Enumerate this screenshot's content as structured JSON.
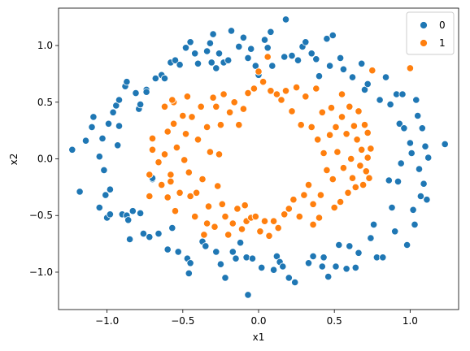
{
  "chart_data": {
    "type": "scatter",
    "xlabel": "x1",
    "ylabel": "x2",
    "xlim": [
      -1.32,
      1.32
    ],
    "ylim": [
      -1.33,
      1.33
    ],
    "xticks": [
      -1.0,
      -0.5,
      0.0,
      0.5,
      1.0
    ],
    "xtick_labels": [
      "−1.0",
      "−0.5",
      "0.0",
      "0.5",
      "1.0"
    ],
    "yticks": [
      -1.0,
      -0.5,
      0.0,
      0.5,
      1.0
    ],
    "ytick_labels": [
      "−1.0",
      "−0.5",
      "0.0",
      "0.5",
      "1.0"
    ],
    "grid": false,
    "legend_position": "top-right",
    "series": [
      {
        "name": "0",
        "color": "#1f77b4",
        "points": [
          [
            -1.23,
            0.08
          ],
          [
            -1.18,
            -0.29
          ],
          [
            -1.14,
            0.16
          ],
          [
            -1.09,
            0.37
          ],
          [
            -1.1,
            0.28
          ],
          [
            -1.05,
            0.02
          ],
          [
            -1.03,
            0.18
          ],
          [
            -1.02,
            -0.1
          ],
          [
            -1.01,
            -0.32
          ],
          [
            -1.0,
            -0.52
          ],
          [
            -0.98,
            -0.49
          ],
          [
            -0.99,
            0.31
          ],
          [
            -0.96,
            0.41
          ],
          [
            -0.94,
            0.47
          ],
          [
            -0.92,
            0.29
          ],
          [
            -0.92,
            0.52
          ],
          [
            -0.9,
            -0.49
          ],
          [
            -0.88,
            0.64
          ],
          [
            -0.87,
            0.68
          ],
          [
            -0.87,
            -0.5
          ],
          [
            -0.86,
            -0.54
          ],
          [
            -0.85,
            -0.71
          ],
          [
            -0.83,
            -0.46
          ],
          [
            -0.81,
            0.58
          ],
          [
            -0.79,
            0.44
          ],
          [
            -0.78,
            0.48
          ],
          [
            -0.78,
            -0.48
          ],
          [
            -0.76,
            -0.66
          ],
          [
            -0.74,
            0.61
          ],
          [
            -0.74,
            0.59
          ],
          [
            -0.72,
            -0.69
          ],
          [
            -0.7,
            -0.18
          ],
          [
            -0.7,
            -0.17
          ],
          [
            -0.68,
            0.71
          ],
          [
            -0.66,
            -0.66
          ],
          [
            -0.64,
            0.74
          ],
          [
            -0.62,
            0.71
          ],
          [
            -0.6,
            -0.8
          ],
          [
            -0.58,
            0.85
          ],
          [
            -0.57,
            -0.61
          ],
          [
            -0.55,
            0.87
          ],
          [
            -0.53,
            -0.82
          ],
          [
            -0.52,
            0.83
          ],
          [
            -0.48,
            0.98
          ],
          [
            -0.47,
            -0.88
          ],
          [
            -0.45,
            -0.92
          ],
          [
            -0.46,
            -1.01
          ],
          [
            -0.45,
            1.03
          ],
          [
            -0.42,
            0.93
          ],
          [
            -0.4,
            0.84
          ],
          [
            -0.37,
            -0.73
          ],
          [
            -0.35,
            -0.77
          ],
          [
            -0.34,
            0.95
          ],
          [
            -0.32,
            1.02
          ],
          [
            -0.31,
            0.85
          ],
          [
            -0.3,
            1.1
          ],
          [
            -0.28,
            -0.82
          ],
          [
            -0.28,
            0.8
          ],
          [
            -0.26,
            0.93
          ],
          [
            -0.25,
            -0.93
          ],
          [
            -0.23,
            0.85
          ],
          [
            -0.22,
            -1.05
          ],
          [
            -0.2,
            0.87
          ],
          [
            -0.18,
            1.13
          ],
          [
            -0.17,
            -0.82
          ],
          [
            -0.15,
            -0.88
          ],
          [
            -0.13,
            0.99
          ],
          [
            -0.12,
            -0.74
          ],
          [
            -0.1,
            1.07
          ],
          [
            -0.08,
            -0.87
          ],
          [
            -0.07,
            0.89
          ],
          [
            -0.07,
            -1.2
          ],
          [
            -0.05,
            0.97
          ],
          [
            -0.04,
            -0.88
          ],
          [
            -0.02,
            0.82
          ],
          [
            0.0,
            0.74
          ],
          [
            0.02,
            -0.96
          ],
          [
            0.04,
            1.05
          ],
          [
            0.06,
            0.98
          ],
          [
            0.08,
            1.12
          ],
          [
            0.09,
            0.82
          ],
          [
            0.1,
            -0.98
          ],
          [
            0.12,
            -0.86
          ],
          [
            0.14,
            -0.91
          ],
          [
            0.16,
            -0.95
          ],
          [
            0.17,
            0.9
          ],
          [
            0.18,
            1.23
          ],
          [
            0.2,
            -1.05
          ],
          [
            0.22,
            0.91
          ],
          [
            0.24,
            -1.09
          ],
          [
            0.26,
            0.87
          ],
          [
            0.29,
            0.99
          ],
          [
            0.31,
            1.03
          ],
          [
            0.33,
            -0.92
          ],
          [
            0.35,
            0.93
          ],
          [
            0.36,
            -0.86
          ],
          [
            0.38,
            0.88
          ],
          [
            0.4,
            0.73
          ],
          [
            0.42,
            -0.95
          ],
          [
            0.43,
            -0.87
          ],
          [
            0.45,
            1.06
          ],
          [
            0.46,
            -1.04
          ],
          [
            0.47,
            0.82
          ],
          [
            0.49,
            1.09
          ],
          [
            0.51,
            -0.95
          ],
          [
            0.53,
            -0.76
          ],
          [
            0.54,
            0.89
          ],
          [
            0.56,
            0.79
          ],
          [
            0.58,
            -0.97
          ],
          [
            0.6,
            -0.77
          ],
          [
            0.62,
            0.72
          ],
          [
            0.64,
            -0.96
          ],
          [
            0.66,
            -0.83
          ],
          [
            0.68,
            0.84
          ],
          [
            0.7,
            0.61
          ],
          [
            0.72,
            0.66
          ],
          [
            0.74,
            -0.7
          ],
          [
            0.76,
            -0.58
          ],
          [
            0.78,
            -0.87
          ],
          [
            0.8,
            0.52
          ],
          [
            0.82,
            -0.87
          ],
          [
            0.84,
            0.72
          ],
          [
            0.86,
            -0.19
          ],
          [
            0.87,
            0.48
          ],
          [
            0.88,
            -0.43
          ],
          [
            0.9,
            -0.64
          ],
          [
            0.91,
            0.57
          ],
          [
            0.92,
            -0.2
          ],
          [
            0.93,
            0.31
          ],
          [
            0.94,
            -0.04
          ],
          [
            0.95,
            0.57
          ],
          [
            0.96,
            0.27
          ],
          [
            0.98,
            -0.76
          ],
          [
            1.0,
            0.14
          ],
          [
            1.01,
            0.05
          ],
          [
            1.02,
            -0.45
          ],
          [
            1.03,
            -0.58
          ],
          [
            1.04,
            0.52
          ],
          [
            1.05,
            0.38
          ],
          [
            1.06,
            -0.09
          ],
          [
            1.07,
            -0.33
          ],
          [
            1.08,
            0.27
          ],
          [
            1.09,
            -0.22
          ],
          [
            1.1,
            0.11
          ],
          [
            1.11,
            -0.36
          ],
          [
            1.12,
            0.01
          ],
          [
            1.23,
            0.13
          ],
          [
            -1.05,
            -0.43
          ],
          [
            -0.98,
            -0.27
          ],
          [
            -0.93,
            0.12
          ]
        ]
      },
      {
        "name": "1",
        "color": "#ff7f0e",
        "points": [
          [
            -0.72,
            -0.14
          ],
          [
            -0.72,
            -0.33
          ],
          [
            -0.7,
            0.08
          ],
          [
            -0.7,
            0.18
          ],
          [
            -0.66,
            -0.03
          ],
          [
            -0.64,
            -0.23
          ],
          [
            -0.62,
            0.04
          ],
          [
            -0.6,
            0.24
          ],
          [
            -0.6,
            -0.34
          ],
          [
            -0.58,
            -0.14
          ],
          [
            -0.58,
            -0.2
          ],
          [
            -0.56,
            0.31
          ],
          [
            -0.56,
            0.5
          ],
          [
            -0.55,
            -0.46
          ],
          [
            -0.54,
            0.1
          ],
          [
            -0.52,
            -0.3
          ],
          [
            -0.5,
            0.38
          ],
          [
            -0.49,
            -0.01
          ],
          [
            -0.48,
            0.22
          ],
          [
            -0.47,
            0.55
          ],
          [
            -0.46,
            -0.12
          ],
          [
            -0.45,
            -0.33
          ],
          [
            -0.44,
            0.37
          ],
          [
            -0.42,
            -0.51
          ],
          [
            -0.41,
            -0.3
          ],
          [
            -0.4,
            0.17
          ],
          [
            -0.38,
            0.46
          ],
          [
            -0.37,
            -0.18
          ],
          [
            -0.36,
            -0.67
          ],
          [
            -0.34,
            0.28
          ],
          [
            -0.33,
            -0.42
          ],
          [
            -0.32,
            0.06
          ],
          [
            -0.3,
            0.54
          ],
          [
            -0.29,
            -0.6
          ],
          [
            -0.28,
            0.46
          ],
          [
            -0.27,
            -0.24
          ],
          [
            -0.25,
            0.3
          ],
          [
            -0.24,
            -0.4
          ],
          [
            -0.23,
            0.57
          ],
          [
            -0.22,
            -0.51
          ],
          [
            -0.2,
            -0.67
          ],
          [
            -0.19,
            0.41
          ],
          [
            -0.17,
            -0.57
          ],
          [
            -0.16,
            0.5
          ],
          [
            -0.14,
            -0.44
          ],
          [
            -0.13,
            0.3
          ],
          [
            -0.11,
            -0.62
          ],
          [
            -0.1,
            0.44
          ],
          [
            -0.08,
            -0.55
          ],
          [
            -0.07,
            0.58
          ],
          [
            -0.05,
            -0.52
          ],
          [
            -0.03,
            0.62
          ],
          [
            -0.02,
            -0.51
          ],
          [
            0.0,
            0.77
          ],
          [
            0.01,
            -0.64
          ],
          [
            0.03,
            0.68
          ],
          [
            0.04,
            -0.55
          ],
          [
            0.06,
            0.9
          ],
          [
            0.08,
            0.6
          ],
          [
            0.1,
            -0.55
          ],
          [
            0.12,
            0.57
          ],
          [
            0.13,
            -0.61
          ],
          [
            0.15,
            0.52
          ],
          [
            0.17,
            -0.49
          ],
          [
            0.18,
            0.6
          ],
          [
            0.2,
            -0.44
          ],
          [
            0.22,
            0.42
          ],
          [
            0.23,
            -0.36
          ],
          [
            0.25,
            0.63
          ],
          [
            0.27,
            -0.51
          ],
          [
            0.28,
            0.3
          ],
          [
            0.3,
            -0.32
          ],
          [
            0.31,
            0.55
          ],
          [
            0.33,
            -0.23
          ],
          [
            0.35,
            0.28
          ],
          [
            0.36,
            -0.4
          ],
          [
            0.38,
            0.62
          ],
          [
            0.39,
            0.17
          ],
          [
            0.41,
            -0.32
          ],
          [
            0.42,
            0.41
          ],
          [
            0.43,
            0.05
          ],
          [
            0.45,
            -0.1
          ],
          [
            0.47,
            0.21
          ],
          [
            0.48,
            0.45
          ],
          [
            0.49,
            -0.18
          ],
          [
            0.51,
            0.28
          ],
          [
            0.52,
            0.06
          ],
          [
            0.54,
            -0.38
          ],
          [
            0.55,
            0.37
          ],
          [
            0.56,
            -0.08
          ],
          [
            0.58,
            0.22
          ],
          [
            0.59,
            -0.3
          ],
          [
            0.6,
            0.46
          ],
          [
            0.61,
            0.0
          ],
          [
            0.62,
            -0.17
          ],
          [
            0.63,
            0.29
          ],
          [
            0.64,
            -0.25
          ],
          [
            0.65,
            0.17
          ],
          [
            0.66,
            0.42
          ],
          [
            0.67,
            -0.06
          ],
          [
            0.68,
            0.08
          ],
          [
            0.69,
            -0.23
          ],
          [
            0.7,
            0.3
          ],
          [
            0.71,
            -0.11
          ],
          [
            0.72,
            0.23
          ],
          [
            0.72,
            0.01
          ],
          [
            0.73,
            -0.17
          ],
          [
            0.74,
            0.09
          ],
          [
            0.75,
            0.78
          ],
          [
            1.0,
            0.8
          ],
          [
            -0.62,
            0.46
          ],
          [
            -0.57,
            0.52
          ],
          [
            -0.34,
            -0.57
          ],
          [
            0.36,
            -0.58
          ],
          [
            0.55,
            0.57
          ],
          [
            0.4,
            -0.52
          ],
          [
            -0.26,
            0.04
          ],
          [
            0.07,
            -0.68
          ],
          [
            -0.09,
            -0.41
          ],
          [
            0.5,
            -0.43
          ]
        ]
      }
    ]
  }
}
